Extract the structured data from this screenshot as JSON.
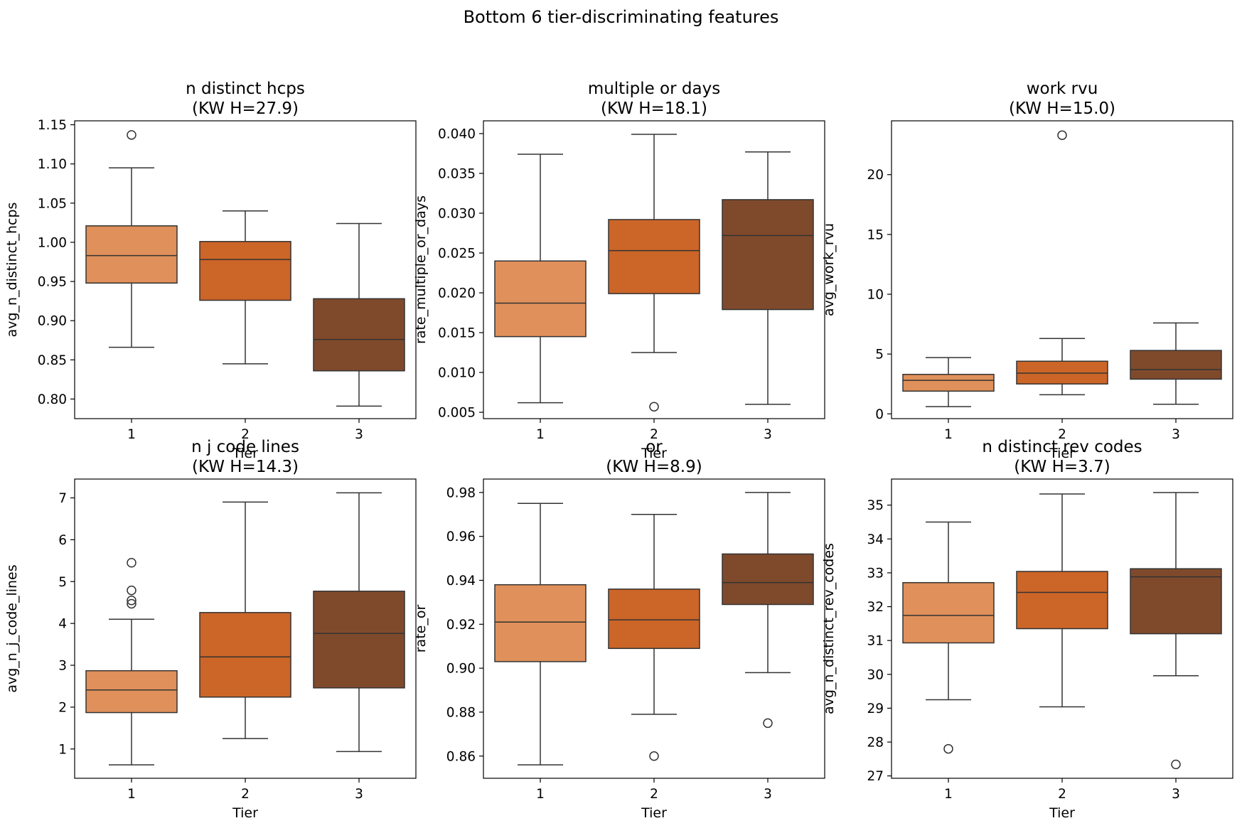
{
  "suptitle": "Bottom 6 tier-discriminating features",
  "colors": {
    "tier1": "#e0905a",
    "tier2": "#cc6528",
    "tier3": "#7f4a2c",
    "line": "#333333",
    "axis": "#000000"
  },
  "chart_data": [
    {
      "type": "box",
      "title_line1": "n distinct hcps",
      "title_line2": "(KW H=27.9)",
      "xlabel": "Tier",
      "ylabel": "avg_n_distinct_hcps",
      "categories": [
        "1",
        "2",
        "3"
      ],
      "ylim": [
        0.775,
        1.155
      ],
      "yticks": [
        0.8,
        0.85,
        0.9,
        0.95,
        1.0,
        1.05,
        1.1,
        1.15
      ],
      "decimals": 2,
      "boxes": [
        {
          "tier": "1",
          "whislo": 0.866,
          "q1": 0.948,
          "med": 0.983,
          "q3": 1.021,
          "whishi": 1.095,
          "fliers": [
            1.137
          ]
        },
        {
          "tier": "2",
          "whislo": 0.845,
          "q1": 0.926,
          "med": 0.978,
          "q3": 1.001,
          "whishi": 1.04,
          "fliers": []
        },
        {
          "tier": "3",
          "whislo": 0.791,
          "q1": 0.836,
          "med": 0.876,
          "q3": 0.928,
          "whishi": 1.024,
          "fliers": []
        }
      ]
    },
    {
      "type": "box",
      "title_line1": "multiple or days",
      "title_line2": "(KW H=18.1)",
      "xlabel": "Tier",
      "ylabel": "rate_multiple_or_days",
      "categories": [
        "1",
        "2",
        "3"
      ],
      "ylim": [
        0.0042,
        0.0416
      ],
      "yticks": [
        0.005,
        0.01,
        0.015,
        0.02,
        0.025,
        0.03,
        0.035,
        0.04
      ],
      "decimals": 3,
      "boxes": [
        {
          "tier": "1",
          "whislo": 0.0062,
          "q1": 0.0145,
          "med": 0.0187,
          "q3": 0.024,
          "whishi": 0.0374,
          "fliers": []
        },
        {
          "tier": "2",
          "whislo": 0.0125,
          "q1": 0.0199,
          "med": 0.0253,
          "q3": 0.0292,
          "whishi": 0.0399,
          "fliers": [
            0.0057
          ]
        },
        {
          "tier": "3",
          "whislo": 0.006,
          "q1": 0.0179,
          "med": 0.0272,
          "q3": 0.0317,
          "whishi": 0.0377,
          "fliers": []
        }
      ]
    },
    {
      "type": "box",
      "title_line1": "work rvu",
      "title_line2": "(KW H=15.0)",
      "xlabel": "Tier",
      "ylabel": "avg_work_rvu",
      "categories": [
        "1",
        "2",
        "3"
      ],
      "ylim": [
        -0.4,
        24.5
      ],
      "yticks": [
        0,
        5,
        10,
        15,
        20
      ],
      "decimals": 0,
      "boxes": [
        {
          "tier": "1",
          "whislo": 0.6,
          "q1": 1.9,
          "med": 2.8,
          "q3": 3.3,
          "whishi": 4.7,
          "fliers": []
        },
        {
          "tier": "2",
          "whislo": 1.6,
          "q1": 2.5,
          "med": 3.4,
          "q3": 4.4,
          "whishi": 6.3,
          "fliers": [
            23.3
          ]
        },
        {
          "tier": "3",
          "whislo": 0.8,
          "q1": 2.9,
          "med": 3.7,
          "q3": 5.3,
          "whishi": 7.6,
          "fliers": []
        }
      ]
    },
    {
      "type": "box",
      "title_line1": "n j code lines",
      "title_line2": "(KW H=14.3)",
      "xlabel": "Tier",
      "ylabel": "avg_n_j_code_lines",
      "categories": [
        "1",
        "2",
        "3"
      ],
      "ylim": [
        0.3,
        7.45
      ],
      "yticks": [
        1,
        2,
        3,
        4,
        5,
        6,
        7
      ],
      "decimals": 0,
      "boxes": [
        {
          "tier": "1",
          "whislo": 0.62,
          "q1": 1.87,
          "med": 2.41,
          "q3": 2.87,
          "whishi": 4.1,
          "fliers": [
            4.47,
            4.55,
            4.79,
            5.45
          ]
        },
        {
          "tier": "2",
          "whislo": 1.25,
          "q1": 2.24,
          "med": 3.2,
          "q3": 4.26,
          "whishi": 6.9,
          "fliers": []
        },
        {
          "tier": "3",
          "whislo": 0.94,
          "q1": 2.46,
          "med": 3.76,
          "q3": 4.77,
          "whishi": 7.12,
          "fliers": []
        }
      ]
    },
    {
      "type": "box",
      "title_line1": "or",
      "title_line2": "(KW H=8.9)",
      "xlabel": "Tier",
      "ylabel": "rate_or",
      "categories": [
        "1",
        "2",
        "3"
      ],
      "ylim": [
        0.8499,
        0.9861
      ],
      "yticks": [
        0.86,
        0.88,
        0.9,
        0.92,
        0.94,
        0.96,
        0.98
      ],
      "decimals": 2,
      "boxes": [
        {
          "tier": "1",
          "whislo": 0.856,
          "q1": 0.903,
          "med": 0.921,
          "q3": 0.938,
          "whishi": 0.975,
          "fliers": []
        },
        {
          "tier": "2",
          "whislo": 0.879,
          "q1": 0.909,
          "med": 0.922,
          "q3": 0.936,
          "whishi": 0.97,
          "fliers": [
            0.86
          ]
        },
        {
          "tier": "3",
          "whislo": 0.898,
          "q1": 0.929,
          "med": 0.939,
          "q3": 0.952,
          "whishi": 0.98,
          "fliers": [
            0.875
          ]
        }
      ]
    },
    {
      "type": "box",
      "title_line1": "n distinct rev codes",
      "title_line2": "(KW H=3.7)",
      "xlabel": "Tier",
      "ylabel": "avg_n_distinct_rev_codes",
      "categories": [
        "1",
        "2",
        "3"
      ],
      "ylim": [
        26.93,
        35.77
      ],
      "yticks": [
        27,
        28,
        29,
        30,
        31,
        32,
        33,
        34,
        35
      ],
      "decimals": 0,
      "boxes": [
        {
          "tier": "1",
          "whislo": 29.25,
          "q1": 30.93,
          "med": 31.74,
          "q3": 32.71,
          "whishi": 34.5,
          "fliers": [
            27.8
          ]
        },
        {
          "tier": "2",
          "whislo": 29.04,
          "q1": 31.35,
          "med": 32.42,
          "q3": 33.04,
          "whishi": 35.33,
          "fliers": []
        },
        {
          "tier": "3",
          "whislo": 29.96,
          "q1": 31.2,
          "med": 32.88,
          "q3": 33.12,
          "whishi": 35.37,
          "fliers": [
            27.34
          ]
        }
      ]
    }
  ]
}
